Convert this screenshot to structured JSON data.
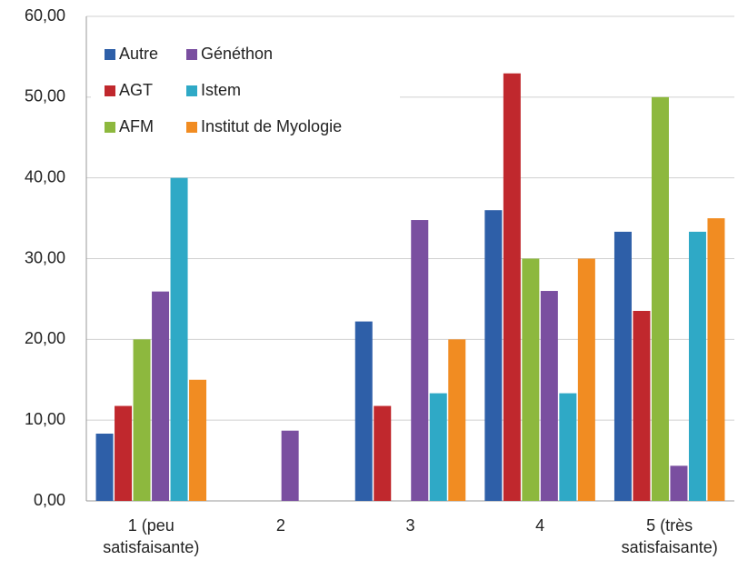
{
  "chart_data": {
    "type": "bar",
    "categories": [
      "1 (peu satisfaisante)",
      "2",
      "3",
      "4",
      "5 (très satisfaisante)"
    ],
    "series": [
      {
        "name": "Autre",
        "color": "#2e5fa8",
        "values": [
          8.33,
          0,
          22.22,
          36,
          33.33
        ]
      },
      {
        "name": "AGT",
        "color": "#c0282d",
        "values": [
          11.76,
          0,
          11.76,
          52.94,
          23.53
        ]
      },
      {
        "name": "AFM",
        "color": "#8db83e",
        "values": [
          20,
          0,
          0,
          30,
          50
        ]
      },
      {
        "name": "Généthon",
        "color": "#7a4fa0",
        "values": [
          25.93,
          8.7,
          34.78,
          26,
          4.35
        ]
      },
      {
        "name": "Istem",
        "color": "#2fa9c6",
        "values": [
          40,
          0,
          13.33,
          13.33,
          33.33
        ]
      },
      {
        "name": "Institut de Myologie",
        "color": "#f18c22",
        "values": [
          15,
          0,
          20,
          30,
          35
        ]
      }
    ],
    "ylim": [
      0,
      60
    ],
    "yticks": [
      {
        "value": 0,
        "label": "0,00"
      },
      {
        "value": 10,
        "label": "10,00"
      },
      {
        "value": 20,
        "label": "20,00"
      },
      {
        "value": 30,
        "label": "30,00"
      },
      {
        "value": 40,
        "label": "40,00"
      },
      {
        "value": 50,
        "label": "50,00"
      },
      {
        "value": 60,
        "label": "60,00"
      }
    ],
    "grid": true,
    "legend": "top-left"
  }
}
